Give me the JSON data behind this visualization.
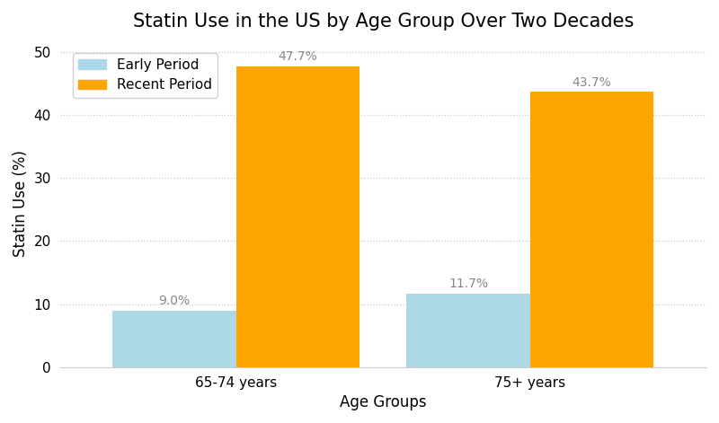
{
  "title": "Statin Use in the US by Age Group Over Two Decades",
  "xlabel": "Age Groups",
  "ylabel": "Statin Use (%)",
  "categories": [
    "65-74 years",
    "75+ years"
  ],
  "early_period": [
    9.0,
    11.7
  ],
  "recent_period": [
    47.7,
    43.7
  ],
  "early_color": "#ADD8E6",
  "recent_color": "#FFA500",
  "ylim": [
    0,
    52
  ],
  "yticks": [
    0,
    10,
    20,
    30,
    40,
    50
  ],
  "bar_width": 0.42,
  "legend_labels": [
    "Early Period",
    "Recent Period"
  ],
  "background_color": "#ffffff",
  "grid_color": "#cccccc",
  "label_color": "#888888",
  "title_fontsize": 15,
  "axis_label_fontsize": 12,
  "tick_fontsize": 11,
  "annotation_fontsize": 10
}
